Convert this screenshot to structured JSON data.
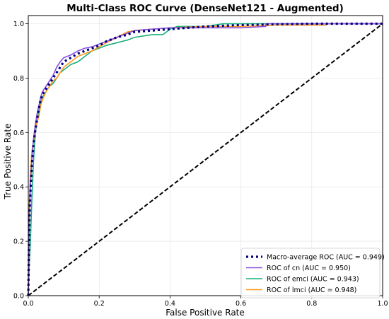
{
  "chart_data": {
    "type": "line",
    "title": "Multi-Class ROC Curve (DenseNet121 - Augmented)",
    "xlabel": "False Positive Rate",
    "ylabel": "True Positive Rate",
    "xlim": [
      0,
      1
    ],
    "ylim": [
      0,
      1.03
    ],
    "xticks": [
      "0.0",
      "0.2",
      "0.4",
      "0.6",
      "0.8",
      "1.0"
    ],
    "yticks": [
      "0.0",
      "0.2",
      "0.4",
      "0.6",
      "0.8",
      "1.0"
    ],
    "grid": true,
    "legend_position": "lower-right",
    "series": [
      {
        "name": "Macro-average ROC (AUC = 0.949)",
        "color": "#000080",
        "style": "dotted",
        "x": [
          0,
          0.003,
          0.006,
          0.01,
          0.015,
          0.02,
          0.025,
          0.03,
          0.035,
          0.04,
          0.05,
          0.06,
          0.07,
          0.08,
          0.09,
          0.1,
          0.12,
          0.14,
          0.16,
          0.18,
          0.2,
          0.22,
          0.25,
          0.28,
          0.3,
          0.35,
          0.4,
          0.5,
          0.6,
          0.7,
          0.8,
          0.9,
          1.0
        ],
        "y": [
          0,
          0.28,
          0.38,
          0.48,
          0.56,
          0.61,
          0.65,
          0.69,
          0.72,
          0.74,
          0.76,
          0.78,
          0.8,
          0.82,
          0.84,
          0.86,
          0.875,
          0.89,
          0.9,
          0.91,
          0.92,
          0.935,
          0.95,
          0.96,
          0.97,
          0.975,
          0.98,
          0.99,
          0.995,
          0.998,
          1.0,
          1.0,
          1.0
        ]
      },
      {
        "name": "ROC of cn (AUC = 0.950)",
        "color": "#8a4fe0",
        "style": "solid",
        "x": [
          0,
          0.003,
          0.006,
          0.01,
          0.015,
          0.02,
          0.025,
          0.03,
          0.035,
          0.04,
          0.05,
          0.06,
          0.07,
          0.08,
          0.09,
          0.1,
          0.12,
          0.14,
          0.16,
          0.18,
          0.2,
          0.22,
          0.25,
          0.28,
          0.3,
          0.35,
          0.4,
          0.5,
          0.6,
          0.67,
          0.67,
          1.0
        ],
        "y": [
          0,
          0.3,
          0.4,
          0.5,
          0.58,
          0.63,
          0.67,
          0.7,
          0.73,
          0.75,
          0.77,
          0.79,
          0.81,
          0.84,
          0.86,
          0.875,
          0.885,
          0.9,
          0.91,
          0.915,
          0.925,
          0.935,
          0.95,
          0.965,
          0.975,
          0.98,
          0.985,
          0.985,
          0.985,
          0.99,
          1.0,
          1.0
        ]
      },
      {
        "name": "ROC of emci (AUC = 0.943)",
        "color": "#1aaf7a",
        "style": "solid",
        "x": [
          0,
          0.003,
          0.006,
          0.01,
          0.015,
          0.02,
          0.025,
          0.03,
          0.035,
          0.04,
          0.05,
          0.06,
          0.07,
          0.08,
          0.09,
          0.1,
          0.12,
          0.14,
          0.16,
          0.18,
          0.2,
          0.22,
          0.25,
          0.28,
          0.3,
          0.35,
          0.38,
          0.4,
          0.42,
          0.5,
          0.55,
          0.6,
          0.8,
          1.0
        ],
        "y": [
          0,
          0.12,
          0.2,
          0.35,
          0.5,
          0.6,
          0.64,
          0.68,
          0.71,
          0.73,
          0.75,
          0.77,
          0.78,
          0.8,
          0.82,
          0.83,
          0.85,
          0.86,
          0.88,
          0.9,
          0.91,
          0.92,
          0.93,
          0.94,
          0.95,
          0.96,
          0.96,
          0.98,
          0.99,
          0.99,
          1.0,
          1.0,
          1.0,
          1.0
        ]
      },
      {
        "name": "ROC of lmci (AUC = 0.948)",
        "color": "#ff9a1a",
        "style": "solid",
        "x": [
          0,
          0.003,
          0.006,
          0.01,
          0.015,
          0.02,
          0.025,
          0.03,
          0.035,
          0.04,
          0.05,
          0.06,
          0.07,
          0.08,
          0.09,
          0.1,
          0.12,
          0.14,
          0.16,
          0.18,
          0.2,
          0.22,
          0.25,
          0.28,
          0.3,
          0.35,
          0.4,
          0.5,
          0.6,
          0.7,
          0.84,
          0.84,
          1.0
        ],
        "y": [
          0,
          0.35,
          0.45,
          0.53,
          0.57,
          0.61,
          0.64,
          0.66,
          0.7,
          0.72,
          0.75,
          0.77,
          0.79,
          0.8,
          0.82,
          0.84,
          0.86,
          0.88,
          0.89,
          0.9,
          0.915,
          0.93,
          0.95,
          0.97,
          0.975,
          0.98,
          0.985,
          0.99,
          0.99,
          0.995,
          0.995,
          1.0,
          1.0
        ]
      },
      {
        "name": "",
        "color": "#000000",
        "style": "dashed",
        "x": [
          0,
          1
        ],
        "y": [
          0,
          1
        ]
      }
    ]
  }
}
